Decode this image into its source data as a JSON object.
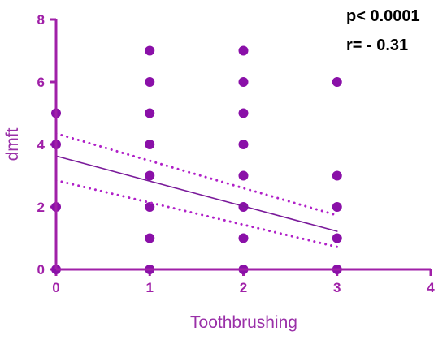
{
  "chart_data": {
    "type": "scatter",
    "title": "",
    "xlabel": "Toothbrushing",
    "ylabel": "dmft",
    "xlim": [
      0,
      4
    ],
    "ylim": [
      0,
      8
    ],
    "x_ticks": [
      "0",
      "1",
      "2",
      "3",
      "4"
    ],
    "y_ticks": [
      "0",
      "2",
      "4",
      "6",
      "8"
    ],
    "grid": false,
    "points": [
      {
        "x": 0,
        "y": 0
      },
      {
        "x": 0,
        "y": 2
      },
      {
        "x": 0,
        "y": 4
      },
      {
        "x": 0,
        "y": 5
      },
      {
        "x": 1,
        "y": 0
      },
      {
        "x": 1,
        "y": 1
      },
      {
        "x": 1,
        "y": 2
      },
      {
        "x": 1,
        "y": 3
      },
      {
        "x": 1,
        "y": 4
      },
      {
        "x": 1,
        "y": 5
      },
      {
        "x": 1,
        "y": 6
      },
      {
        "x": 1,
        "y": 7
      },
      {
        "x": 2,
        "y": 0
      },
      {
        "x": 2,
        "y": 1
      },
      {
        "x": 2,
        "y": 2
      },
      {
        "x": 2,
        "y": 3
      },
      {
        "x": 2,
        "y": 4
      },
      {
        "x": 2,
        "y": 5
      },
      {
        "x": 2,
        "y": 6
      },
      {
        "x": 2,
        "y": 7
      },
      {
        "x": 3,
        "y": 0
      },
      {
        "x": 3,
        "y": 1
      },
      {
        "x": 3,
        "y": 2
      },
      {
        "x": 3,
        "y": 3
      },
      {
        "x": 3,
        "y": 6
      }
    ],
    "regression_line": {
      "x": [
        0,
        3
      ],
      "y": [
        3.63,
        1.22
      ]
    },
    "confidence_band_upper": {
      "x": [
        0,
        3
      ],
      "y": [
        4.35,
        1.73
      ]
    },
    "confidence_band_lower": {
      "x": [
        0,
        3
      ],
      "y": [
        2.85,
        0.72
      ]
    },
    "annotations": [
      "p< 0.0001",
      "r= - 0.31"
    ],
    "colors": {
      "axis": "#a020a8",
      "point": "#8a10a8",
      "regression_line": "#7a1a9a",
      "confidence_band": "#b020c8",
      "axis_title": "#9a30a8"
    }
  }
}
